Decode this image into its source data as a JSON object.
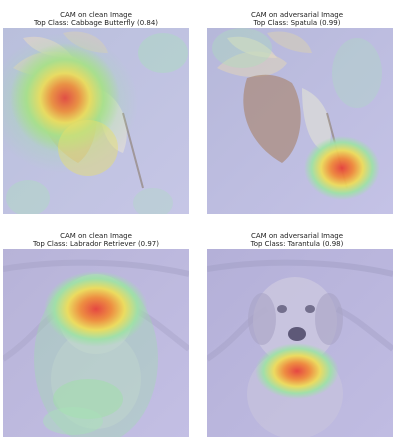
{
  "panels": [
    {
      "title": "CAM on clean Image",
      "subtitle": "Top Class: Cabbage Butterfly (0.84)"
    },
    {
      "title": "CAM on adversarial Image",
      "subtitle": "Top Class: Spatula (0.99)"
    },
    {
      "title": "CAM on clean Image",
      "subtitle": "Top Class: Labrador Retriever (0.97)"
    },
    {
      "title": "CAM on adversarial Image",
      "subtitle": "Top Class: Tarantula (0.98)"
    }
  ]
}
